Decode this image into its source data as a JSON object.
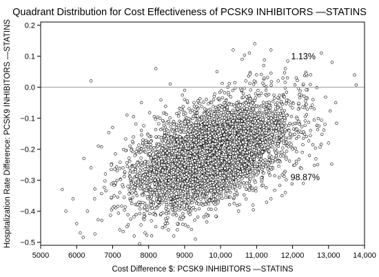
{
  "chart_data": {
    "type": "scatter",
    "title": "Quadrant Distribution for Cost Effectiveness of PCSK9 INHIBITORS —STATINS",
    "xlabel": "Cost Difference $: PCSK9 INHIBITORS —STATINS",
    "ylabel": "Hospitalization Rate Difference: PCSK9 INHIBITORS —STATINS",
    "xlim": [
      5000,
      14000
    ],
    "ylim": [
      -0.51,
      0.21
    ],
    "x_ticks": [
      5000,
      6000,
      7000,
      8000,
      9000,
      10000,
      11000,
      12000,
      13000,
      14000
    ],
    "x_tick_labels": [
      "5000",
      "6000",
      "7000",
      "8000",
      "9000",
      "10,000",
      "11,000",
      "12,000",
      "13,000",
      "14,000"
    ],
    "y_ticks": [
      0.2,
      0.1,
      0.0,
      -0.1,
      -0.2,
      -0.3,
      -0.4,
      -0.5
    ],
    "y_tick_labels": [
      "0.2",
      "0.1",
      "0.0",
      "−0.1",
      "−0.2",
      "−0.3",
      "−0.4",
      "−0.5"
    ],
    "reference_line_y": 0.0,
    "grid": false,
    "marker": "circle-open",
    "annotations": [
      {
        "text": "1.13%",
        "x": 12300,
        "y": 0.09
      },
      {
        "text": "98.87%",
        "x": 12350,
        "y": -0.3
      }
    ],
    "distribution": {
      "n_points": 5000,
      "x_mean": 9750,
      "x_sd": 1050,
      "y_mean": -0.215,
      "y_sd": 0.085,
      "correlation": 0.5
    },
    "series": [
      {
        "points": [
          [
            6400,
            0.02
          ],
          [
            9000,
            -0.01
          ],
          [
            9900,
            0.05
          ],
          [
            10800,
            0.11
          ],
          [
            10950,
            0.14
          ],
          [
            11200,
            0.07
          ],
          [
            11400,
            0.12
          ],
          [
            10700,
            0.02
          ],
          [
            11800,
            0.06
          ],
          [
            12100,
            0.03
          ],
          [
            12500,
            0.04
          ],
          [
            13100,
            0.08
          ],
          [
            10350,
            0.12
          ],
          [
            10600,
            0.09
          ],
          [
            11600,
            0.02
          ],
          [
            12800,
            0.11
          ],
          [
            11000,
            0.04
          ],
          [
            12300,
            0.01
          ],
          [
            5600,
            -0.33
          ],
          [
            5700,
            -0.4
          ],
          [
            5900,
            -0.36
          ],
          [
            6000,
            -0.44
          ],
          [
            6100,
            -0.47
          ],
          [
            6300,
            -0.4
          ],
          [
            6500,
            -0.36
          ],
          [
            6700,
            -0.43
          ],
          [
            7000,
            -0.39
          ],
          [
            7200,
            -0.46
          ],
          [
            7400,
            -0.45
          ],
          [
            7600,
            -0.48
          ],
          [
            7900,
            -0.47
          ],
          [
            8200,
            -0.45
          ],
          [
            8500,
            -0.43
          ],
          [
            8800,
            -0.46
          ],
          [
            9100,
            -0.45
          ],
          [
            9600,
            -0.41
          ],
          [
            6200,
            -0.23
          ],
          [
            6600,
            -0.19
          ],
          [
            7000,
            -0.13
          ],
          [
            7400,
            -0.09
          ],
          [
            7800,
            -0.05
          ],
          [
            8200,
            0.06
          ],
          [
            8600,
            0.01
          ],
          [
            12600,
            -0.07
          ],
          [
            12900,
            -0.12
          ],
          [
            13200,
            -0.05
          ],
          [
            13000,
            -0.18
          ],
          [
            12700,
            -0.25
          ],
          [
            12300,
            -0.31
          ],
          [
            12000,
            -0.2
          ],
          [
            12500,
            -0.14
          ],
          [
            11800,
            -0.34
          ],
          [
            11400,
            -0.36
          ],
          [
            10900,
            -0.38
          ],
          [
            10500,
            -0.4
          ],
          [
            9300,
            -0.49
          ],
          [
            8700,
            -0.48
          ],
          [
            6800,
            -0.28
          ],
          [
            7200,
            -0.34
          ],
          [
            6400,
            -0.26
          ]
        ]
      }
    ]
  }
}
